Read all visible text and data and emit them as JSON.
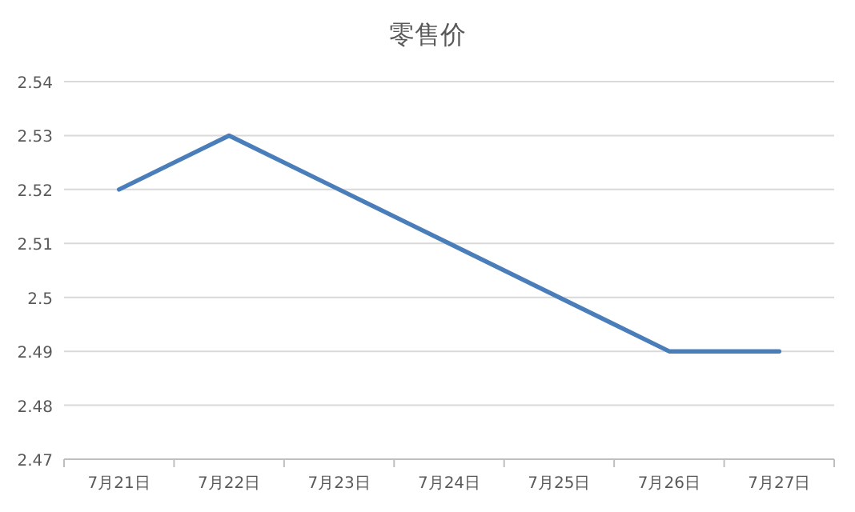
{
  "chart_data": {
    "type": "line",
    "title": "零售价",
    "categories": [
      "7月21日",
      "7月22日",
      "7月23日",
      "7月24日",
      "7月25日",
      "7月26日",
      "7月27日"
    ],
    "series": [
      {
        "color": "#4a7ebb",
        "values": [
          2.52,
          2.53,
          2.52,
          2.51,
          2.5,
          2.49,
          2.49
        ]
      }
    ],
    "ylim": [
      2.47,
      2.54
    ],
    "yticks": [
      2.47,
      2.48,
      2.49,
      2.5,
      2.51,
      2.52,
      2.53,
      2.54
    ],
    "grid": "y",
    "marker": "none",
    "line_style": "solid"
  }
}
